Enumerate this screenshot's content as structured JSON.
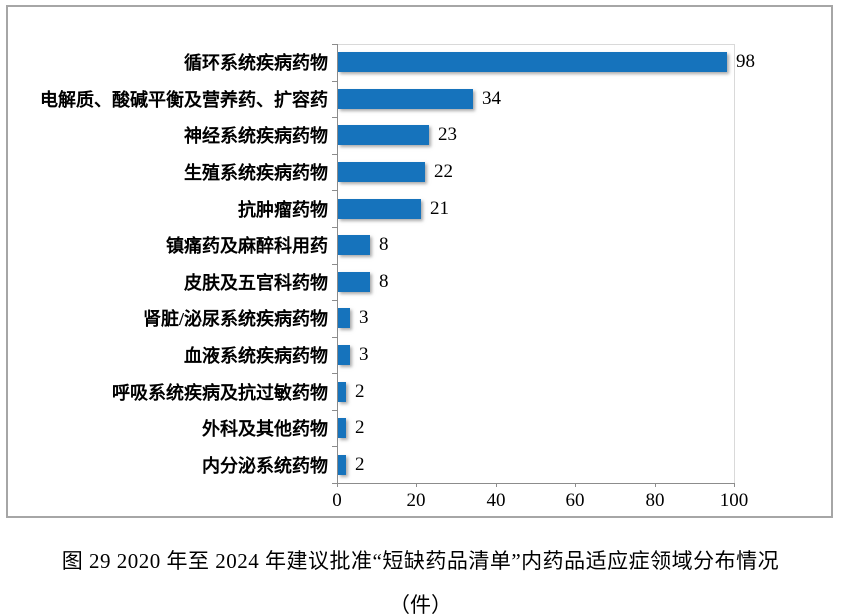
{
  "chart_data": {
    "type": "bar",
    "orientation": "horizontal",
    "title": "",
    "categories": [
      "循环系统疾病药物",
      "电解质、酸碱平衡及营养药、扩容药",
      "神经系统疾病药物",
      "生殖系统疾病药物",
      "抗肿瘤药物",
      "镇痛药及麻醉科用药",
      "皮肤及五官科药物",
      "肾脏/泌尿系统疾病药物",
      "血液系统疾病药物",
      "呼吸系统疾病及抗过敏药物",
      "外科及其他药物",
      "内分泌系统药物"
    ],
    "values": [
      98,
      34,
      23,
      22,
      21,
      8,
      8,
      3,
      3,
      2,
      2,
      2
    ],
    "data_labels": [
      98,
      34,
      23,
      22,
      21,
      8,
      8,
      3,
      3,
      2,
      2,
      2
    ],
    "xlim": [
      0,
      100
    ],
    "xticks": [
      0,
      20,
      40,
      60,
      80,
      100
    ],
    "grid": "off",
    "legend": "none",
    "bar_color": "#1673bc"
  },
  "caption": {
    "line1": "图 29   2020 年至 2024 年建议批准“短缺药品清单”内药品适应症领域分布情况",
    "line2": "（件）"
  },
  "colors": {
    "bar": "#1673bc",
    "axis": "#8c8c8c",
    "frame_border": "#a6a6a6",
    "plot_border": "#d9d9d9",
    "text": "#000000"
  }
}
